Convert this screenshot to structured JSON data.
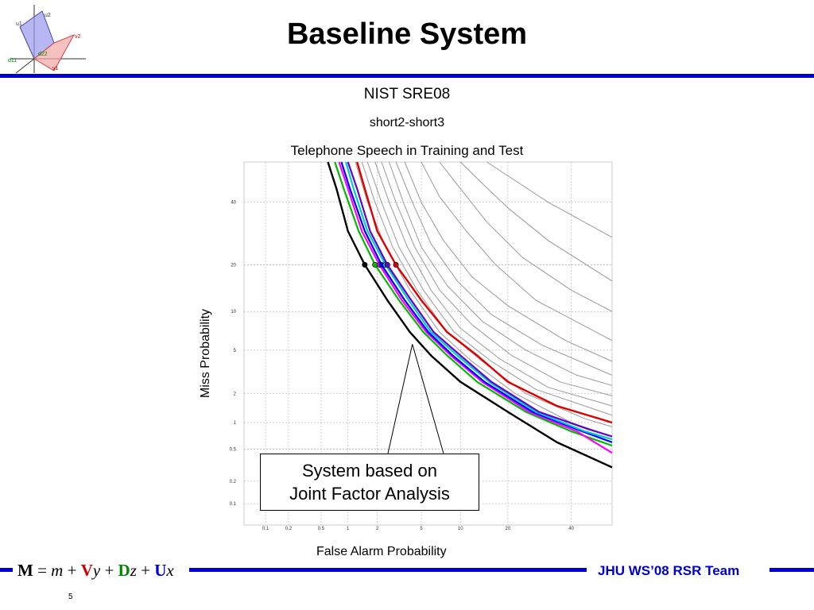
{
  "slide": {
    "title": "Baseline System",
    "team_label": "JHU WS’08 RSR Team",
    "page_number": "5",
    "formula": [
      {
        "t": "M",
        "style": "b",
        "color": "#000000"
      },
      {
        "t": " = ",
        "style": "n",
        "color": "#000000"
      },
      {
        "t": "m",
        "style": "i",
        "color": "#000000"
      },
      {
        "t": " + ",
        "style": "n",
        "color": "#000000"
      },
      {
        "t": "V",
        "style": "b",
        "color": "#cc0000"
      },
      {
        "t": "y",
        "style": "i",
        "color": "#000000"
      },
      {
        "t": " + ",
        "style": "n",
        "color": "#000000"
      },
      {
        "t": "D",
        "style": "b",
        "color": "#008800"
      },
      {
        "t": "z",
        "style": "i",
        "color": "#000000"
      },
      {
        "t": " + ",
        "style": "n",
        "color": "#000000"
      },
      {
        "t": "U",
        "style": "b",
        "color": "#0000cc"
      },
      {
        "t": "x",
        "style": "i",
        "color": "#000000"
      }
    ],
    "logo_labels": [
      "u1",
      "u2",
      "v2",
      "v1",
      "d11",
      "d22"
    ],
    "callout": {
      "line1": "System based on",
      "line2": "Joint Factor Analysis"
    },
    "accent_color": "#0000cc"
  },
  "chart_data": {
    "type": "line",
    "title": "NIST SRE08",
    "subtitle": "short2-short3",
    "subtitle2": "Telephone Speech in Training and Test",
    "xlabel": "False Alarm Probability",
    "ylabel": "Miss Probability",
    "scale": "normal-deviate (DET)",
    "x_ticks": [
      0.1,
      0.2,
      0.5,
      1,
      2,
      5,
      10,
      20,
      40
    ],
    "x_tick_labels": [
      "0.1",
      "0.2",
      "0.5",
      "1",
      "2",
      "5",
      "10",
      "20",
      "40"
    ],
    "y_ticks": [
      0.1,
      0.2,
      0.5,
      1,
      2,
      5,
      10,
      20,
      40
    ],
    "y_tick_labels": [
      "0.1",
      "0.2",
      "0.5",
      "1",
      "2",
      "5",
      "10",
      "20",
      "40"
    ],
    "xlim": [
      0.05,
      55
    ],
    "ylim": [
      0.05,
      55
    ],
    "grid": true,
    "series": [
      {
        "color": "#000000",
        "width": 2.4,
        "points": [
          [
            0.6,
            55
          ],
          [
            0.75,
            45
          ],
          [
            1,
            30
          ],
          [
            1.5,
            20
          ],
          [
            2.5,
            12
          ],
          [
            4,
            7
          ],
          [
            6,
            4.5
          ],
          [
            10,
            2.6
          ],
          [
            20,
            1.3
          ],
          [
            35,
            0.6
          ],
          [
            55,
            0.3
          ]
        ],
        "highlight": true
      },
      {
        "color": "#00bb00",
        "width": 2.2,
        "points": [
          [
            0.72,
            55
          ],
          [
            0.9,
            45
          ],
          [
            1.3,
            30
          ],
          [
            1.9,
            20
          ],
          [
            3.2,
            12
          ],
          [
            5.2,
            7
          ],
          [
            8,
            4.5
          ],
          [
            13,
            2.6
          ],
          [
            25,
            1.3
          ],
          [
            40,
            0.8
          ],
          [
            55,
            0.55
          ]
        ]
      },
      {
        "color": "#ff00ff",
        "width": 2.2,
        "points": [
          [
            0.8,
            55
          ],
          [
            1,
            45
          ],
          [
            1.4,
            30
          ],
          [
            2.1,
            20
          ],
          [
            3.4,
            12
          ],
          [
            5.5,
            7
          ],
          [
            8.5,
            4.5
          ],
          [
            14,
            2.6
          ],
          [
            26,
            1.3
          ],
          [
            42,
            0.8
          ],
          [
            55,
            0.45
          ]
        ]
      },
      {
        "color": "#0000ff",
        "width": 2.2,
        "points": [
          [
            0.85,
            55
          ],
          [
            1.05,
            45
          ],
          [
            1.5,
            30
          ],
          [
            2.2,
            20
          ],
          [
            3.6,
            12
          ],
          [
            5.7,
            7
          ],
          [
            8.8,
            4.5
          ],
          [
            14.5,
            2.6
          ],
          [
            27,
            1.3
          ],
          [
            44,
            0.8
          ],
          [
            55,
            0.6
          ]
        ]
      },
      {
        "color": "#00cccc",
        "width": 2.2,
        "points": [
          [
            0.95,
            55
          ],
          [
            1.15,
            45
          ],
          [
            1.6,
            30
          ],
          [
            2.4,
            20
          ],
          [
            3.9,
            12
          ],
          [
            6,
            7
          ],
          [
            9.5,
            4.5
          ],
          [
            15.5,
            2.6
          ],
          [
            28,
            1.3
          ],
          [
            45,
            0.8
          ],
          [
            55,
            0.65
          ]
        ]
      },
      {
        "color": "#6600cc",
        "width": 2.2,
        "points": [
          [
            1,
            55
          ],
          [
            1.25,
            45
          ],
          [
            1.7,
            30
          ],
          [
            2.5,
            20
          ],
          [
            4.1,
            12
          ],
          [
            6.3,
            7
          ],
          [
            10,
            4.5
          ],
          [
            16,
            2.6
          ],
          [
            29,
            1.3
          ],
          [
            46,
            0.85
          ],
          [
            55,
            0.7
          ]
        ]
      },
      {
        "color": "#dd0000",
        "width": 2.4,
        "points": [
          [
            1.25,
            55
          ],
          [
            1.5,
            45
          ],
          [
            2,
            30
          ],
          [
            3,
            20
          ],
          [
            5,
            12
          ],
          [
            8,
            7
          ],
          [
            13,
            4.5
          ],
          [
            20,
            2.6
          ],
          [
            35,
            1.5
          ],
          [
            55,
            1
          ]
        ]
      },
      {
        "color": "#999999",
        "width": 1,
        "points": [
          [
            1.2,
            55
          ],
          [
            1.6,
            40
          ],
          [
            2.4,
            25
          ],
          [
            4,
            14
          ],
          [
            7,
            7
          ],
          [
            12,
            4
          ],
          [
            22,
            2
          ],
          [
            40,
            1
          ],
          [
            55,
            0.7
          ]
        ]
      },
      {
        "color": "#999999",
        "width": 1,
        "points": [
          [
            1.4,
            55
          ],
          [
            1.9,
            40
          ],
          [
            2.8,
            25
          ],
          [
            4.6,
            14
          ],
          [
            8,
            7
          ],
          [
            14,
            4
          ],
          [
            25,
            2
          ],
          [
            45,
            1.1
          ],
          [
            55,
            0.9
          ]
        ]
      },
      {
        "color": "#999999",
        "width": 1,
        "points": [
          [
            1.6,
            55
          ],
          [
            2.2,
            40
          ],
          [
            3.2,
            25
          ],
          [
            5.2,
            14
          ],
          [
            9,
            7
          ],
          [
            16,
            4
          ],
          [
            28,
            2.2
          ],
          [
            55,
            1.2
          ]
        ]
      },
      {
        "color": "#999999",
        "width": 1,
        "points": [
          [
            1.9,
            55
          ],
          [
            2.6,
            40
          ],
          [
            3.8,
            25
          ],
          [
            6,
            14
          ],
          [
            10,
            7.5
          ],
          [
            18,
            4.2
          ],
          [
            32,
            2.3
          ],
          [
            55,
            1.5
          ]
        ]
      },
      {
        "color": "#999999",
        "width": 1,
        "points": [
          [
            2.2,
            55
          ],
          [
            3,
            40
          ],
          [
            4.4,
            25
          ],
          [
            7,
            14
          ],
          [
            12,
            8
          ],
          [
            21,
            4.5
          ],
          [
            36,
            2.6
          ],
          [
            55,
            1.9
          ]
        ]
      },
      {
        "color": "#999999",
        "width": 1,
        "points": [
          [
            2.6,
            55
          ],
          [
            3.5,
            40
          ],
          [
            5,
            25
          ],
          [
            8,
            15
          ],
          [
            14,
            8.5
          ],
          [
            25,
            5
          ],
          [
            42,
            3
          ],
          [
            55,
            2.4
          ]
        ]
      },
      {
        "color": "#999999",
        "width": 1,
        "points": [
          [
            3,
            55
          ],
          [
            4.2,
            40
          ],
          [
            6,
            26
          ],
          [
            9.5,
            16
          ],
          [
            16,
            9.5
          ],
          [
            30,
            5.5
          ],
          [
            55,
            3
          ]
        ]
      },
      {
        "color": "#999999",
        "width": 1,
        "points": [
          [
            3.6,
            55
          ],
          [
            5,
            40
          ],
          [
            7.5,
            27
          ],
          [
            12,
            17
          ],
          [
            20,
            11
          ],
          [
            38,
            6
          ],
          [
            55,
            4
          ]
        ]
      },
      {
        "color": "#999999",
        "width": 1,
        "points": [
          [
            5,
            55
          ],
          [
            7,
            42
          ],
          [
            11,
            30
          ],
          [
            17,
            20
          ],
          [
            28,
            12
          ],
          [
            55,
            6
          ]
        ]
      },
      {
        "color": "#999999",
        "width": 1,
        "points": [
          [
            7,
            55
          ],
          [
            10,
            45
          ],
          [
            15,
            33
          ],
          [
            24,
            22
          ],
          [
            40,
            14
          ],
          [
            55,
            10
          ]
        ]
      },
      {
        "color": "#999999",
        "width": 1,
        "points": [
          [
            10,
            55
          ],
          [
            14,
            47
          ],
          [
            20,
            38
          ],
          [
            32,
            27
          ],
          [
            55,
            16
          ]
        ]
      },
      {
        "color": "#999999",
        "width": 1,
        "points": [
          [
            15,
            55
          ],
          [
            22,
            48
          ],
          [
            32,
            40
          ],
          [
            55,
            28
          ]
        ]
      }
    ]
  }
}
